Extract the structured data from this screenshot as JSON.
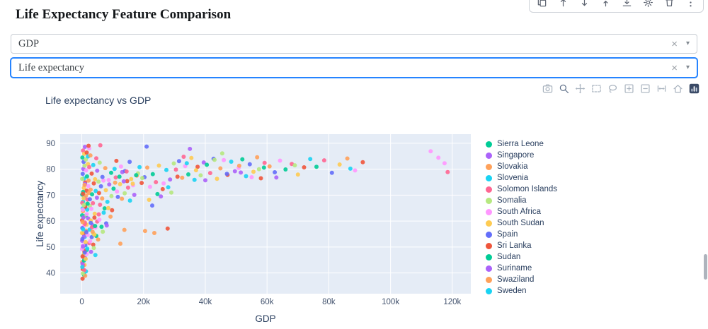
{
  "page": {
    "title": "Life Expectancy Feature Comparison"
  },
  "cell_toolbar": {
    "icons": [
      "copy-icon",
      "move-up-icon",
      "move-down-icon",
      "insert-above-icon",
      "insert-below-icon",
      "gear-icon",
      "delete-icon",
      "more-icon"
    ]
  },
  "controls": {
    "feature_x": {
      "value": "GDP"
    },
    "feature_y": {
      "value": "Life expectancy"
    },
    "glyphs": {
      "clear": "×",
      "caret": "▾"
    },
    "focus_color": "#2684FF"
  },
  "modebar": {
    "icons": [
      "camera-icon",
      "zoom-icon",
      "pan-icon",
      "box-select-icon",
      "lasso-icon",
      "zoom-in-icon",
      "zoom-out-icon",
      "autoscale-icon",
      "home-icon",
      "plotly-logo-icon"
    ]
  },
  "chart_data": {
    "type": "scatter",
    "title": "Life expectancy  vs GDP",
    "xlabel": "GDP",
    "ylabel": "Life expectancy",
    "xlim": [
      -7000,
      126000
    ],
    "ylim": [
      32,
      93.5
    ],
    "xticks": {
      "values": [
        0,
        20000,
        40000,
        60000,
        80000,
        100000,
        120000
      ],
      "labels": [
        "0",
        "20k",
        "40k",
        "60k",
        "80k",
        "100k",
        "120k"
      ]
    },
    "yticks": {
      "values": [
        40,
        50,
        60,
        70,
        80,
        90
      ],
      "labels": [
        "40",
        "50",
        "60",
        "70",
        "80",
        "90"
      ]
    },
    "plot_bg": "#e5ecf6",
    "grid_color": "#ffffff",
    "tick_color": "#43536e",
    "palette": [
      "#636efa",
      "#EF553B",
      "#00cc96",
      "#ab63fa",
      "#FFA15A",
      "#19d3f3",
      "#FF6692",
      "#B6E880",
      "#FF97FF",
      "#FECB52"
    ],
    "legend_position": "right",
    "grid": true,
    "legend": [
      {
        "name": "Sierra Leone",
        "color": "#00cc96"
      },
      {
        "name": "Singapore",
        "color": "#ab63fa"
      },
      {
        "name": "Slovakia",
        "color": "#FFA15A"
      },
      {
        "name": "Slovenia",
        "color": "#19d3f3"
      },
      {
        "name": "Solomon Islands",
        "color": "#FF6692"
      },
      {
        "name": "Somalia",
        "color": "#B6E880"
      },
      {
        "name": "South Africa",
        "color": "#FF97FF"
      },
      {
        "name": "South Sudan",
        "color": "#FECB52"
      },
      {
        "name": "Spain",
        "color": "#636efa"
      },
      {
        "name": "Sri Lanka",
        "color": "#EF553B"
      },
      {
        "name": "Sudan",
        "color": "#00cc96"
      },
      {
        "name": "Suriname",
        "color": "#ab63fa"
      },
      {
        "name": "Swaziland",
        "color": "#FFA15A"
      },
      {
        "name": "Sweden",
        "color": "#19d3f3"
      }
    ],
    "points": [
      [
        300,
        78.2,
        0
      ],
      [
        500,
        80.1,
        3
      ],
      [
        700,
        76.4,
        5
      ],
      [
        900,
        81.3,
        7
      ],
      [
        1100,
        74.9,
        1
      ],
      [
        1400,
        79.5,
        8
      ],
      [
        1700,
        77.2,
        2
      ],
      [
        2000,
        82.0,
        9
      ],
      [
        2200,
        75.6,
        4
      ],
      [
        2400,
        80.8,
        6
      ],
      [
        150,
        70.2,
        2
      ],
      [
        400,
        67.5,
        5
      ],
      [
        650,
        72.8,
        9
      ],
      [
        850,
        69.1,
        0
      ],
      [
        1050,
        74.3,
        3
      ],
      [
        1300,
        66.4,
        7
      ],
      [
        1550,
        71.7,
        1
      ],
      [
        1800,
        68.3,
        6
      ],
      [
        2100,
        73.5,
        8
      ],
      [
        2350,
        70.9,
        4
      ],
      [
        120,
        60.3,
        1
      ],
      [
        380,
        63.8,
        4
      ],
      [
        600,
        57.9,
        8
      ],
      [
        820,
        65.2,
        0
      ],
      [
        1000,
        59.4,
        6
      ],
      [
        1250,
        62.1,
        2
      ],
      [
        1500,
        58.6,
        9
      ],
      [
        1750,
        64.4,
        5
      ],
      [
        2050,
        61.0,
        3
      ],
      [
        2600,
        65.8,
        7
      ],
      [
        100,
        52.4,
        3
      ],
      [
        350,
        49.8,
        7
      ],
      [
        550,
        55.1,
        1
      ],
      [
        750,
        47.6,
        9
      ],
      [
        950,
        53.9,
        5
      ],
      [
        1150,
        50.7,
        0
      ],
      [
        1400,
        56.3,
        4
      ],
      [
        1650,
        48.9,
        2
      ],
      [
        1900,
        54.6,
        8
      ],
      [
        2400,
        51.5,
        6
      ],
      [
        130,
        44.2,
        4
      ],
      [
        320,
        41.5,
        1
      ],
      [
        520,
        46.8,
        7
      ],
      [
        700,
        39.3,
        2
      ],
      [
        900,
        43.1,
        9
      ],
      [
        1100,
        45.7,
        0
      ],
      [
        1350,
        40.6,
        5
      ],
      [
        1600,
        47.3,
        8
      ],
      [
        250,
        37.8,
        1
      ],
      [
        450,
        42.9,
        6
      ],
      [
        2600,
        68.4,
        0
      ],
      [
        2850,
        72.1,
        4
      ],
      [
        3100,
        64.7,
        8
      ],
      [
        3350,
        70.3,
        2
      ],
      [
        3600,
        66.9,
        6
      ],
      [
        3900,
        74.5,
        1
      ],
      [
        4200,
        62.8,
        9
      ],
      [
        4500,
        71.6,
        5
      ],
      [
        4900,
        69.0,
        3
      ],
      [
        5400,
        75.2,
        7
      ],
      [
        2550,
        56.7,
        5
      ],
      [
        2900,
        60.2,
        9
      ],
      [
        3200,
        53.8,
        0
      ],
      [
        3500,
        58.4,
        3
      ],
      [
        3800,
        55.1,
        7
      ],
      [
        4100,
        61.3,
        1
      ],
      [
        4400,
        57.5,
        8
      ],
      [
        4700,
        54.3,
        2
      ],
      [
        5000,
        59.8,
        6
      ],
      [
        5300,
        52.9,
        4
      ],
      [
        5600,
        70.8,
        1
      ],
      [
        5900,
        66.3,
        6
      ],
      [
        6200,
        73.4,
        0
      ],
      [
        6600,
        68.7,
        4
      ],
      [
        7000,
        75.6,
        8
      ],
      [
        7400,
        64.9,
        2
      ],
      [
        7800,
        71.9,
        9
      ],
      [
        8300,
        67.4,
        5
      ],
      [
        8900,
        74.1,
        3
      ],
      [
        9600,
        69.6,
        7
      ],
      [
        5700,
        60.5,
        8
      ],
      [
        6400,
        57.8,
        2
      ],
      [
        7100,
        63.2,
        5
      ],
      [
        7900,
        59.1,
        0
      ],
      [
        8600,
        65.0,
        9
      ],
      [
        9300,
        61.7,
        4
      ],
      [
        6800,
        55.9,
        7
      ],
      [
        9800,
        64.2,
        1
      ],
      [
        8100,
        58.3,
        3
      ],
      [
        5500,
        62.6,
        6
      ],
      [
        10300,
        72.5,
        2
      ],
      [
        11000,
        76.8,
        6
      ],
      [
        11700,
        69.3,
        0
      ],
      [
        12400,
        74.2,
        9
      ],
      [
        13100,
        78.9,
        3
      ],
      [
        13900,
        70.7,
        7
      ],
      [
        14700,
        75.4,
        1
      ],
      [
        15600,
        67.9,
        5
      ],
      [
        16600,
        73.8,
        8
      ],
      [
        17800,
        77.5,
        4
      ],
      [
        10600,
        80.1,
        5
      ],
      [
        11400,
        71.4,
        8
      ],
      [
        12200,
        77.1,
        2
      ],
      [
        13000,
        68.6,
        4
      ],
      [
        14000,
        79.3,
        0
      ],
      [
        15000,
        72.9,
        6
      ],
      [
        16000,
        76.2,
        9
      ],
      [
        17000,
        70.1,
        3
      ],
      [
        18200,
        78.4,
        7
      ],
      [
        19400,
        74.7,
        1
      ],
      [
        20300,
        76.9,
        0
      ],
      [
        21200,
        80.6,
        4
      ],
      [
        22100,
        73.2,
        8
      ],
      [
        23000,
        78.1,
        2
      ],
      [
        24000,
        75.0,
        6
      ],
      [
        25000,
        81.4,
        9
      ],
      [
        26200,
        72.3,
        1
      ],
      [
        27400,
        79.7,
        5
      ],
      [
        28600,
        76.0,
        3
      ],
      [
        29800,
        82.2,
        7
      ],
      [
        20500,
        56.2,
        4
      ],
      [
        23500,
        55.4,
        4
      ],
      [
        27800,
        57.1,
        1
      ],
      [
        21800,
        68.2,
        9
      ],
      [
        25600,
        69.5,
        3
      ],
      [
        29000,
        71.0,
        7
      ],
      [
        22800,
        66.0,
        0
      ],
      [
        26500,
        74.5,
        8
      ],
      [
        24500,
        70.4,
        2
      ],
      [
        28000,
        73.0,
        5
      ],
      [
        12500,
        51.3,
        4
      ],
      [
        13800,
        56.6,
        4
      ],
      [
        30500,
        79.8,
        6
      ],
      [
        31500,
        83.1,
        0
      ],
      [
        32500,
        76.7,
        4
      ],
      [
        33500,
        81.2,
        8
      ],
      [
        34500,
        78.0,
        2
      ],
      [
        35500,
        84.3,
        9
      ],
      [
        36500,
        75.9,
        5
      ],
      [
        37500,
        80.9,
        1
      ],
      [
        38500,
        77.6,
        7
      ],
      [
        39500,
        82.6,
        3
      ],
      [
        40500,
        81.7,
        2
      ],
      [
        41600,
        78.5,
        6
      ],
      [
        42700,
        84.0,
        0
      ],
      [
        43800,
        76.3,
        9
      ],
      [
        44900,
        80.3,
        4
      ],
      [
        46000,
        83.5,
        8
      ],
      [
        47200,
        77.8,
        1
      ],
      [
        48400,
        82.9,
        5
      ],
      [
        49600,
        79.2,
        3
      ],
      [
        45500,
        86.1,
        7
      ],
      [
        50800,
        80.5,
        8
      ],
      [
        52000,
        83.8,
        2
      ],
      [
        53200,
        77.3,
        5
      ],
      [
        54400,
        81.9,
        0
      ],
      [
        55600,
        79.0,
        9
      ],
      [
        56800,
        84.6,
        4
      ],
      [
        58000,
        76.5,
        1
      ],
      [
        59200,
        82.4,
        6
      ],
      [
        51500,
        78.7,
        3
      ],
      [
        57400,
        80.0,
        7
      ],
      [
        60800,
        81.1,
        4
      ],
      [
        62500,
        78.8,
        0
      ],
      [
        64200,
        83.3,
        8
      ],
      [
        66000,
        79.9,
        2
      ],
      [
        68000,
        82.0,
        6
      ],
      [
        70000,
        77.9,
        9
      ],
      [
        72000,
        80.7,
        1
      ],
      [
        74000,
        83.9,
        5
      ],
      [
        63000,
        76.8,
        3
      ],
      [
        69000,
        81.5,
        7
      ],
      [
        76000,
        80.9,
        2
      ],
      [
        78500,
        83.4,
        6
      ],
      [
        81000,
        78.6,
        0
      ],
      [
        83500,
        81.8,
        9
      ],
      [
        86000,
        84.1,
        4
      ],
      [
        88500,
        79.5,
        8
      ],
      [
        91000,
        82.7,
        1
      ],
      [
        87000,
        80.2,
        5
      ],
      [
        113000,
        86.9,
        8
      ],
      [
        115500,
        84.4,
        8
      ],
      [
        117500,
        82.3,
        8
      ],
      [
        118500,
        78.9,
        6
      ],
      [
        180,
        57.3,
        0
      ],
      [
        260,
        64.9,
        5
      ],
      [
        340,
        50.6,
        8
      ],
      [
        420,
        71.2,
        2
      ],
      [
        500,
        46.1,
        6
      ],
      [
        580,
        68.8,
        9
      ],
      [
        660,
        54.0,
        3
      ],
      [
        740,
        61.8,
        7
      ],
      [
        820,
        48.5,
        1
      ],
      [
        900,
        73.9,
        4
      ],
      [
        1000,
        58.9,
        6
      ],
      [
        1120,
        65.5,
        1
      ],
      [
        1240,
        51.9,
        9
      ],
      [
        1360,
        69.9,
        4
      ],
      [
        1480,
        55.7,
        0
      ],
      [
        1620,
        62.7,
        8
      ],
      [
        1760,
        49.4,
        5
      ],
      [
        1900,
        66.7,
        2
      ],
      [
        140,
        76.3,
        7
      ],
      [
        220,
        43.6,
        3
      ],
      [
        200,
        84.5,
        2
      ],
      [
        400,
        87.2,
        6
      ],
      [
        600,
        82.8,
        0
      ],
      [
        800,
        85.9,
        9
      ],
      [
        1000,
        88.6,
        3
      ],
      [
        1300,
        83.7,
        7
      ],
      [
        1600,
        86.4,
        1
      ],
      [
        2000,
        84.9,
        5
      ],
      [
        2400,
        88.0,
        8
      ],
      [
        2800,
        85.3,
        4
      ],
      [
        3200,
        78.3,
        1
      ],
      [
        3700,
        81.6,
        5
      ],
      [
        4300,
        76.1,
        9
      ],
      [
        5000,
        79.4,
        3
      ],
      [
        5800,
        82.5,
        7
      ],
      [
        6700,
        77.0,
        0
      ],
      [
        7600,
        80.4,
        4
      ],
      [
        8700,
        75.8,
        8
      ],
      [
        9500,
        78.6,
        2
      ],
      [
        4700,
        84.2,
        6
      ],
      [
        12700,
        81.0,
        8
      ],
      [
        13600,
        75.3,
        3
      ],
      [
        14500,
        79.1,
        6
      ],
      [
        15500,
        82.8,
        0
      ],
      [
        16500,
        74.4,
        9
      ],
      [
        17600,
        77.7,
        2
      ],
      [
        18700,
        80.8,
        5
      ],
      [
        19600,
        76.6,
        7
      ],
      [
        11200,
        83.2,
        1
      ],
      [
        10800,
        74.8,
        4
      ],
      [
        60,
        55.4,
        9
      ],
      [
        110,
        62.2,
        2
      ],
      [
        160,
        67.0,
        6
      ],
      [
        210,
        53.1,
        0
      ],
      [
        270,
        59.6,
        4
      ],
      [
        330,
        64.4,
        8
      ],
      [
        390,
        70.5,
        1
      ],
      [
        460,
        56.8,
        5
      ],
      [
        530,
        61.4,
        3
      ],
      [
        610,
        66.1,
        7
      ],
      [
        700,
        44.8,
        2
      ],
      [
        800,
        41.1,
        6
      ],
      [
        950,
        47.9,
        0
      ],
      [
        1100,
        38.9,
        4
      ],
      [
        1250,
        45.4,
        9
      ],
      [
        90,
        49.2,
        8
      ],
      [
        170,
        42.3,
        5
      ],
      [
        240,
        46.4,
        1
      ],
      [
        310,
        39.8,
        7
      ],
      [
        380,
        50.2,
        3
      ],
      [
        2700,
        52.2,
        8
      ],
      [
        3000,
        48.1,
        3
      ],
      [
        3300,
        57.6,
        6
      ],
      [
        3700,
        50.9,
        1
      ],
      [
        4100,
        54.8,
        9
      ],
      [
        4400,
        46.9,
        5
      ],
      [
        2900,
        59.3,
        0
      ],
      [
        3500,
        55.9,
        4
      ],
      [
        3900,
        49.6,
        7
      ],
      [
        4300,
        58.1,
        2
      ],
      [
        31000,
        77.1,
        1
      ],
      [
        34000,
        82.3,
        5
      ],
      [
        37000,
        79.6,
        9
      ],
      [
        40000,
        75.7,
        3
      ],
      [
        43000,
        83.6,
        7
      ],
      [
        47000,
        78.2,
        0
      ],
      [
        51000,
        81.3,
        4
      ],
      [
        55000,
        76.9,
        8
      ],
      [
        59000,
        80.6,
        2
      ],
      [
        33000,
        84.8,
        6
      ],
      [
        6000,
        89.2,
        6
      ],
      [
        21000,
        88.7,
        0
      ],
      [
        35000,
        87.8,
        3
      ],
      [
        2200,
        89.0,
        1
      ]
    ]
  }
}
